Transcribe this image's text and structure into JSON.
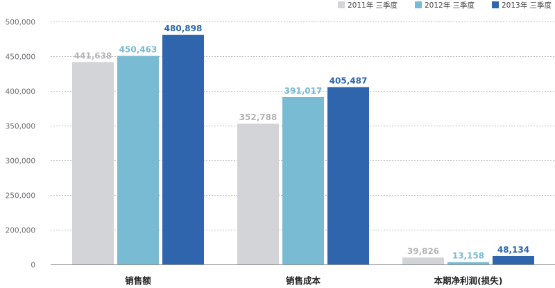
{
  "chart_data": {
    "type": "bar",
    "categories": [
      "销售额",
      "销售成本",
      "本期净利润(损失)"
    ],
    "series": [
      {
        "name": "2011年 三季度",
        "color": "#d2d4d7",
        "label_color": "#b3b5b8",
        "values": [
          441638,
          352788,
          39826
        ]
      },
      {
        "name": "2012年 三季度",
        "color": "#78bbd3",
        "label_color": "#78bbd3",
        "values": [
          450463,
          391017,
          13158
        ]
      },
      {
        "name": "2013年 三季度",
        "color": "#2e65ad",
        "label_color": "#2e65ad",
        "values": [
          480898,
          405487,
          48134
        ]
      }
    ],
    "value_labels": [
      [
        "441,638",
        "352,788",
        "39,826"
      ],
      [
        "450,463",
        "391,017",
        "13,158"
      ],
      [
        "480,898",
        "405,487",
        "48,134"
      ]
    ],
    "yaxis_ticks": [
      {
        "value": 0,
        "label": "0"
      },
      {
        "value": 200000,
        "label": "200,000"
      },
      {
        "value": 250000,
        "label": "250,000"
      },
      {
        "value": 300000,
        "label": "300,000"
      },
      {
        "value": 350000,
        "label": "350,000"
      },
      {
        "value": 400000,
        "label": "400,000"
      },
      {
        "value": 450000,
        "label": "450,000"
      },
      {
        "value": 500000,
        "label": "500,000"
      }
    ],
    "ylim": [
      0,
      500000
    ],
    "axis_break": true,
    "grid": true,
    "legend_position": "top-right"
  }
}
